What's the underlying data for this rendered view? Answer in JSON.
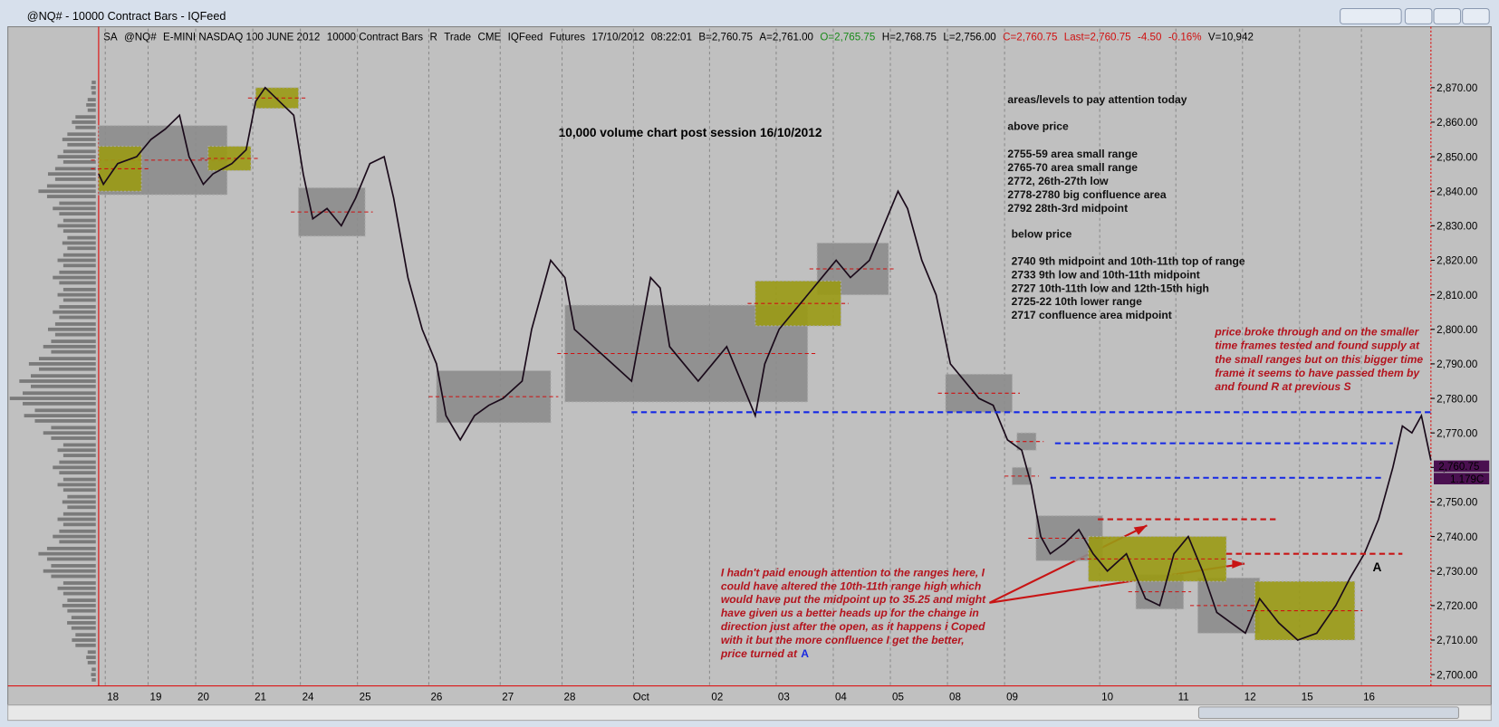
{
  "window_title": "@NQ# - 10000 Contract Bars - IQFeed",
  "header": [
    {
      "text": "SA",
      "color": "#000000"
    },
    {
      "text": "@NQ#",
      "color": "#000000"
    },
    {
      "text": "E-MINI NASDAQ 100 JUNE 2012",
      "color": "#000000"
    },
    {
      "text": "10000 Contract Bars",
      "color": "#000000"
    },
    {
      "text": "R",
      "color": "#000000"
    },
    {
      "text": "Trade",
      "color": "#000000"
    },
    {
      "text": "CME",
      "color": "#000000"
    },
    {
      "text": "IQFeed",
      "color": "#000000"
    },
    {
      "text": "Futures",
      "color": "#000000"
    },
    {
      "text": "17/10/2012",
      "color": "#000000"
    },
    {
      "text": "08:22:01",
      "color": "#000000"
    },
    {
      "text": "B=2,760.75",
      "color": "#000000"
    },
    {
      "text": "A=2,761.00",
      "color": "#000000"
    },
    {
      "text": "O=2,765.75",
      "color": "#1a8a1a"
    },
    {
      "text": "H=2,768.75",
      "color": "#000000"
    },
    {
      "text": "L=2,756.00",
      "color": "#000000"
    },
    {
      "text": "C=2,760.75",
      "color": "#d01010"
    },
    {
      "text": "Last=2,760.75",
      "color": "#d01010"
    },
    {
      "text": "-4.50",
      "color": "#d01010"
    },
    {
      "text": "-0.16%",
      "color": "#d01010"
    },
    {
      "text": "V=10,942",
      "color": "#000000"
    }
  ],
  "chart_data": {
    "type": "line",
    "title": "10,000 volume chart post session 16/10/2012",
    "xlim": [
      0,
      280
    ],
    "ylim": [
      2697,
      2881
    ],
    "grid": true,
    "xticks": [
      {
        "value": 3,
        "label": "18"
      },
      {
        "value": 12,
        "label": "19"
      },
      {
        "value": 22,
        "label": "20"
      },
      {
        "value": 34,
        "label": "21"
      },
      {
        "value": 44,
        "label": "24"
      },
      {
        "value": 56,
        "label": "25"
      },
      {
        "value": 71,
        "label": "26"
      },
      {
        "value": 86,
        "label": "27"
      },
      {
        "value": 99,
        "label": "28"
      },
      {
        "value": 114,
        "label": "Oct"
      },
      {
        "value": 130,
        "label": "02"
      },
      {
        "value": 144,
        "label": "03"
      },
      {
        "value": 156,
        "label": "04"
      },
      {
        "value": 168,
        "label": "05"
      },
      {
        "value": 180,
        "label": "08"
      },
      {
        "value": 192,
        "label": "09"
      },
      {
        "value": 212,
        "label": "10"
      },
      {
        "value": 228,
        "label": "11"
      },
      {
        "value": 242,
        "label": "12"
      },
      {
        "value": 254,
        "label": "15"
      },
      {
        "value": 267,
        "label": "16"
      }
    ],
    "yticks": [
      {
        "value": 2700,
        "label": "2,700.00"
      },
      {
        "value": 2710,
        "label": "2,710.00"
      },
      {
        "value": 2720,
        "label": "2,720.00"
      },
      {
        "value": 2730,
        "label": "2,730.00"
      },
      {
        "value": 2740,
        "label": "2,740.00"
      },
      {
        "value": 2750,
        "label": "2,750.00"
      },
      {
        "value": 2760,
        "label": "2,760.00"
      },
      {
        "value": 2770,
        "label": "2,770.00"
      },
      {
        "value": 2780,
        "label": "2,780.00"
      },
      {
        "value": 2790,
        "label": "2,790.00"
      },
      {
        "value": 2800,
        "label": "2,800.00"
      },
      {
        "value": 2810,
        "label": "2,810.00"
      },
      {
        "value": 2820,
        "label": "2,820.00"
      },
      {
        "value": 2830,
        "label": "2,830.00"
      },
      {
        "value": 2840,
        "label": "2,840.00"
      },
      {
        "value": 2850,
        "label": "2,850.00"
      },
      {
        "value": 2860,
        "label": "2,860.00"
      },
      {
        "value": 2870,
        "label": "2,870.00"
      }
    ],
    "price": {
      "color": "#1a0a1a",
      "x": [
        0,
        1,
        4,
        8,
        11,
        14,
        17,
        19,
        22,
        24,
        28,
        31,
        33,
        35,
        38,
        41,
        43,
        45,
        48,
        51,
        54,
        57,
        60,
        62,
        65,
        68,
        71,
        73,
        76,
        79,
        82,
        85,
        89,
        91,
        93,
        95,
        98,
        100,
        104,
        108,
        112,
        114,
        116,
        118,
        120,
        123,
        126,
        129,
        132,
        135,
        138,
        140,
        143,
        146,
        149,
        152,
        155,
        158,
        162,
        165,
        168,
        170,
        173,
        176,
        179,
        182,
        185,
        188,
        191,
        194,
        196,
        198,
        200,
        203,
        206,
        209,
        212,
        216,
        220,
        223,
        226,
        229,
        232,
        235,
        238,
        241,
        244,
        248,
        252,
        256,
        260,
        263,
        266,
        269,
        272,
        274,
        276,
        278,
        280
      ],
      "values": [
        2845,
        2842,
        2848,
        2850,
        2855,
        2858,
        2862,
        2850,
        2842,
        2845,
        2848,
        2852,
        2866,
        2870,
        2866,
        2862,
        2845,
        2832,
        2835,
        2830,
        2838,
        2848,
        2850,
        2838,
        2815,
        2800,
        2790,
        2775,
        2768,
        2775,
        2778,
        2780,
        2785,
        2800,
        2810,
        2820,
        2815,
        2800,
        2795,
        2790,
        2785,
        2800,
        2815,
        2812,
        2795,
        2790,
        2785,
        2790,
        2795,
        2785,
        2775,
        2790,
        2800,
        2805,
        2810,
        2815,
        2820,
        2815,
        2820,
        2830,
        2840,
        2835,
        2820,
        2810,
        2790,
        2785,
        2780,
        2778,
        2768,
        2765,
        2755,
        2740,
        2735,
        2738,
        2742,
        2735,
        2730,
        2735,
        2722,
        2720,
        2735,
        2740,
        2730,
        2718,
        2715,
        2712,
        2722,
        2715,
        2710,
        2712,
        2720,
        2728,
        2735,
        2745,
        2760,
        2772,
        2770,
        2775,
        2762
      ]
    },
    "ranges": [
      {
        "x": [
          0,
          27
        ],
        "low": 2839,
        "high": 2859,
        "color": "#8c8c8c"
      },
      {
        "x": [
          42,
          56
        ],
        "low": 2827,
        "high": 2841,
        "color": "#8c8c8c"
      },
      {
        "x": [
          71,
          95
        ],
        "low": 2773,
        "high": 2788,
        "color": "#8c8c8c"
      },
      {
        "x": [
          98,
          149
        ],
        "low": 2779,
        "high": 2807,
        "color": "#8c8c8c"
      },
      {
        "x": [
          151,
          166
        ],
        "low": 2810,
        "high": 2825,
        "color": "#8c8c8c"
      },
      {
        "x": [
          178,
          192
        ],
        "low": 2776,
        "high": 2787,
        "color": "#8c8c8c"
      },
      {
        "x": [
          193,
          197
        ],
        "low": 2765,
        "high": 2770,
        "color": "#8c8c8c"
      },
      {
        "x": [
          192,
          196
        ],
        "low": 2755,
        "high": 2760,
        "color": "#8c8c8c"
      },
      {
        "x": [
          197,
          211
        ],
        "low": 2733,
        "high": 2746,
        "color": "#8c8c8c"
      },
      {
        "x": [
          218,
          228
        ],
        "low": 2719,
        "high": 2729,
        "color": "#8c8c8c"
      },
      {
        "x": [
          231,
          244
        ],
        "low": 2712,
        "high": 2728,
        "color": "#8c8c8c"
      },
      {
        "x": [
          0,
          9
        ],
        "low": 2840,
        "high": 2853,
        "color": "#9a9a14"
      },
      {
        "x": [
          23,
          32
        ],
        "low": 2846,
        "high": 2853,
        "color": "#9a9a14"
      },
      {
        "x": [
          33,
          42
        ],
        "low": 2864,
        "high": 2870,
        "color": "#9a9a14"
      },
      {
        "x": [
          138,
          156
        ],
        "low": 2801,
        "high": 2814,
        "color": "#9a9a14"
      },
      {
        "x": [
          208,
          237
        ],
        "low": 2727,
        "high": 2740,
        "color": "#9a9a14"
      },
      {
        "x": [
          243,
          264
        ],
        "low": 2710,
        "high": 2727,
        "color": "#9a9a14"
      }
    ],
    "levels": [
      {
        "x": [
          112,
          280
        ],
        "value": 2776,
        "color": "#1428e6"
      },
      {
        "x": [
          201,
          272
        ],
        "value": 2767,
        "color": "#1428e6"
      },
      {
        "x": [
          200,
          270
        ],
        "value": 2757,
        "color": "#1428e6"
      },
      {
        "x": [
          210,
          248
        ],
        "value": 2745,
        "color": "#c81414"
      },
      {
        "x": [
          237,
          274
        ],
        "value": 2735,
        "color": "#c81414"
      }
    ],
    "volume_profile": {
      "color": "#7a7a7a",
      "prices": [
        2700,
        2705,
        2710,
        2715,
        2720,
        2725,
        2730,
        2735,
        2740,
        2745,
        2750,
        2755,
        2760,
        2765,
        2770,
        2775,
        2780,
        2785,
        2790,
        2795,
        2800,
        2805,
        2810,
        2815,
        2820,
        2825,
        2830,
        2835,
        2840,
        2845,
        2850,
        2855,
        2860,
        2865,
        2870
      ],
      "values": [
        5,
        10,
        25,
        30,
        35,
        40,
        55,
        60,
        45,
        40,
        35,
        40,
        45,
        40,
        55,
        75,
        90,
        80,
        70,
        55,
        50,
        45,
        40,
        45,
        40,
        35,
        40,
        45,
        60,
        50,
        40,
        35,
        25,
        10,
        5
      ]
    },
    "price_tag": "2,760.75",
    "count_tag": "1.179C"
  },
  "notes": {
    "heading": "areas/levels to pay attention today",
    "above_label": "above price",
    "above": [
      "2755-59 area small range",
      "2765-70 area small range",
      "2772, 26th-27th low",
      "2778-2780 big confluence area",
      "2792 28th-3rd midpoint"
    ],
    "below_label": "below price",
    "below": [
      "2740 9th midpoint and 10th-11th top of range",
      "2733 9th low and 10th-11th midpoint",
      "2727 10th-11th low and 12th-15th high",
      "2725-22 10th lower range",
      "2717 confluence area midpoint"
    ]
  },
  "right_comment": [
    "price broke through and on the smaller",
    "time frames tested and found supply at",
    "the small ranges but on this bigger time",
    "frame it seems to have passed them by",
    "and found R at previous S"
  ],
  "left_comment": [
    "I hadn't paid enough attention to the ranges here, I",
    "could have altered the 10th-11th range high which",
    "would have put the midpoint up to 35.25 and might",
    "have given us a better heads up for the change in",
    "direction just after the open, as it happens i Coped",
    "with it but the more confluence I get the better,",
    "price turned at"
  ],
  "marker": "A"
}
